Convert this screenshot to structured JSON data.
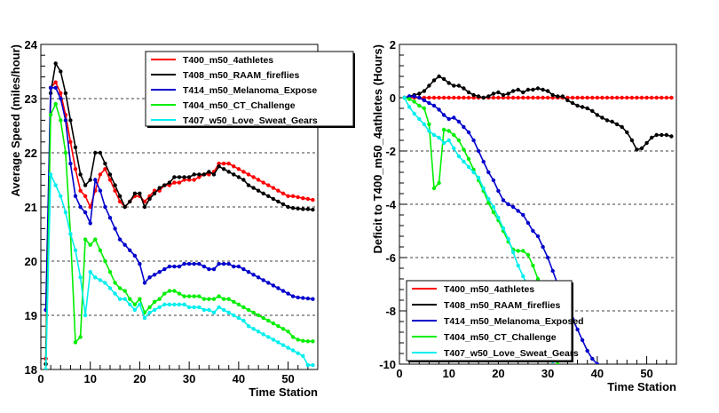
{
  "chart_data": [
    {
      "type": "line",
      "title": "",
      "xlabel": "Time Station",
      "ylabel": "Average Speed (miles/hour)",
      "xlim": [
        0,
        56
      ],
      "ylim": [
        18,
        24
      ],
      "x_ticks": [
        0,
        10,
        20,
        30,
        40,
        50
      ],
      "y_ticks": [
        18,
        19,
        20,
        21,
        22,
        23,
        24
      ],
      "grid": "y-dashed",
      "legend_position": "top-right",
      "series": [
        {
          "name": "T400_m50_4athletes",
          "color": "#ff0000",
          "x": [
            1,
            2,
            3,
            4,
            5,
            6,
            7,
            8,
            9,
            10,
            11,
            12,
            13,
            14,
            15,
            16,
            17,
            18,
            19,
            20,
            21,
            22,
            23,
            24,
            25,
            26,
            27,
            28,
            29,
            30,
            31,
            32,
            33,
            34,
            35,
            36,
            37,
            38,
            39,
            40,
            41,
            42,
            43,
            44,
            45,
            46,
            47,
            48,
            49,
            50,
            51,
            52,
            53,
            54,
            55
          ],
          "values": [
            18.2,
            23.2,
            23.3,
            23.1,
            22.7,
            22.2,
            21.7,
            21.3,
            21.2,
            21.0,
            21.3,
            21.6,
            21.7,
            21.5,
            21.3,
            21.1,
            21.0,
            21.1,
            21.2,
            21.2,
            21.1,
            21.2,
            21.3,
            21.3,
            21.4,
            21.4,
            21.45,
            21.45,
            21.5,
            21.5,
            21.5,
            21.55,
            21.6,
            21.6,
            21.65,
            21.8,
            21.8,
            21.8,
            21.75,
            21.7,
            21.65,
            21.6,
            21.55,
            21.5,
            21.45,
            21.4,
            21.35,
            21.3,
            21.25,
            21.2,
            21.2,
            21.18,
            21.16,
            21.15,
            21.13
          ]
        },
        {
          "name": "T408_m50_RAAM_fireflies",
          "color": "#000000",
          "x": [
            1,
            2,
            3,
            4,
            5,
            6,
            7,
            8,
            9,
            10,
            11,
            12,
            13,
            14,
            15,
            16,
            17,
            18,
            19,
            20,
            21,
            22,
            23,
            24,
            25,
            26,
            27,
            28,
            29,
            30,
            31,
            32,
            33,
            34,
            35,
            36,
            37,
            38,
            39,
            40,
            41,
            42,
            43,
            44,
            45,
            46,
            47,
            48,
            49,
            50,
            51,
            52,
            53,
            54,
            55
          ],
          "values": [
            18.1,
            23.1,
            23.65,
            23.5,
            23.1,
            22.6,
            22.1,
            21.6,
            21.4,
            21.5,
            22.0,
            22.0,
            21.8,
            21.6,
            21.4,
            21.2,
            21.0,
            21.1,
            21.25,
            21.25,
            21.0,
            21.15,
            21.25,
            21.35,
            21.4,
            21.45,
            21.55,
            21.55,
            21.55,
            21.55,
            21.6,
            21.6,
            21.6,
            21.65,
            21.6,
            21.75,
            21.7,
            21.65,
            21.6,
            21.55,
            21.5,
            21.4,
            21.35,
            21.3,
            21.25,
            21.2,
            21.15,
            21.1,
            21.05,
            21.0,
            20.98,
            20.97,
            20.96,
            20.96,
            20.95
          ]
        },
        {
          "name": "T414_m50_Melanoma_Expose",
          "color": "#0000cc",
          "x": [
            1,
            2,
            3,
            4,
            5,
            6,
            7,
            8,
            9,
            10,
            11,
            12,
            13,
            14,
            15,
            16,
            17,
            18,
            19,
            20,
            21,
            22,
            23,
            24,
            25,
            26,
            27,
            28,
            29,
            30,
            31,
            32,
            33,
            34,
            35,
            36,
            37,
            38,
            39,
            40,
            41,
            42,
            43,
            44,
            45,
            46,
            47,
            48,
            49,
            50,
            51,
            52,
            53,
            54,
            55
          ],
          "values": [
            19.1,
            23.2,
            23.2,
            23.0,
            22.6,
            21.8,
            21.2,
            21.0,
            20.9,
            20.7,
            21.5,
            21.3,
            21.0,
            20.8,
            20.6,
            20.4,
            20.3,
            20.2,
            20.1,
            19.95,
            19.6,
            19.7,
            19.75,
            19.8,
            19.85,
            19.9,
            19.9,
            19.9,
            19.95,
            19.95,
            19.95,
            19.95,
            19.9,
            19.85,
            19.85,
            19.95,
            19.95,
            19.95,
            19.9,
            19.9,
            19.85,
            19.8,
            19.75,
            19.7,
            19.65,
            19.6,
            19.55,
            19.5,
            19.45,
            19.4,
            19.35,
            19.33,
            19.32,
            19.31,
            19.3
          ]
        },
        {
          "name": "T404_m50_CT_Challenge",
          "color": "#00ee00",
          "x": [
            1,
            2,
            3,
            4,
            5,
            6,
            7,
            8,
            9,
            10,
            11,
            12,
            13,
            14,
            15,
            16,
            17,
            18,
            19,
            20,
            21,
            22,
            23,
            24,
            25,
            26,
            27,
            28,
            29,
            30,
            31,
            32,
            33,
            34,
            35,
            36,
            37,
            38,
            39,
            40,
            41,
            42,
            43,
            44,
            45,
            46,
            47,
            48,
            49,
            50,
            51,
            52,
            53,
            54,
            55
          ],
          "values": [
            18.0,
            22.7,
            22.9,
            22.6,
            22.0,
            20.5,
            18.5,
            18.6,
            20.4,
            20.3,
            20.4,
            20.2,
            20.0,
            19.8,
            19.6,
            19.5,
            19.45,
            19.3,
            19.2,
            19.3,
            19.05,
            19.15,
            19.25,
            19.3,
            19.4,
            19.45,
            19.45,
            19.4,
            19.35,
            19.35,
            19.35,
            19.35,
            19.3,
            19.3,
            19.3,
            19.35,
            19.3,
            19.3,
            19.25,
            19.2,
            19.15,
            19.1,
            19.05,
            19.0,
            18.95,
            18.9,
            18.85,
            18.8,
            18.75,
            18.7,
            18.6,
            18.55,
            18.53,
            18.52,
            18.52
          ]
        },
        {
          "name": "T407_w50_Love_Sweat_Gears",
          "color": "#00eeee",
          "x": [
            1,
            2,
            3,
            4,
            5,
            6,
            7,
            8,
            9,
            10,
            11,
            12,
            13,
            14,
            15,
            16,
            17,
            18,
            19,
            20,
            21,
            22,
            23,
            24,
            25,
            26,
            27,
            28,
            29,
            30,
            31,
            32,
            33,
            34,
            35,
            36,
            37,
            38,
            39,
            40,
            41,
            42,
            43,
            44,
            45,
            46,
            47,
            48,
            49,
            50,
            51,
            52,
            53,
            54,
            55
          ],
          "values": [
            18.0,
            21.6,
            21.4,
            21.2,
            20.9,
            20.5,
            20.2,
            19.7,
            19.0,
            19.8,
            19.7,
            19.65,
            19.6,
            19.5,
            19.4,
            19.3,
            19.3,
            19.2,
            19.1,
            19.2,
            18.95,
            19.05,
            19.1,
            19.15,
            19.2,
            19.2,
            19.2,
            19.2,
            19.2,
            19.15,
            19.15,
            19.15,
            19.1,
            19.1,
            19.05,
            19.15,
            19.1,
            19.05,
            19.0,
            18.95,
            18.9,
            18.8,
            18.75,
            18.7,
            18.65,
            18.6,
            18.55,
            18.5,
            18.45,
            18.4,
            18.35,
            18.3,
            18.25,
            18.08,
            18.08
          ]
        }
      ]
    },
    {
      "type": "line",
      "title": "",
      "xlabel": "Time Station",
      "ylabel": "Deficit to T400_m50_4athletes (Hours)",
      "xlim": [
        0,
        56
      ],
      "ylim": [
        -10,
        2
      ],
      "x_ticks": [
        0,
        10,
        20,
        30,
        40,
        50
      ],
      "y_ticks": [
        -10,
        -8,
        -6,
        -4,
        -2,
        0,
        2
      ],
      "grid": "y-dashed",
      "legend_position": "bottom-left",
      "series": [
        {
          "name": "T400_m50_4athletes",
          "color": "#ff0000",
          "x": [
            1,
            2,
            3,
            4,
            5,
            6,
            7,
            8,
            9,
            10,
            11,
            12,
            13,
            14,
            15,
            16,
            17,
            18,
            19,
            20,
            21,
            22,
            23,
            24,
            25,
            26,
            27,
            28,
            29,
            30,
            31,
            32,
            33,
            34,
            35,
            36,
            37,
            38,
            39,
            40,
            41,
            42,
            43,
            44,
            45,
            46,
            47,
            48,
            49,
            50,
            51,
            52,
            53,
            54,
            55
          ],
          "values": [
            0,
            0,
            0,
            0,
            0,
            0,
            0,
            0,
            0,
            0,
            0,
            0,
            0,
            0,
            0,
            0,
            0,
            0,
            0,
            0,
            0,
            0,
            0,
            0,
            0,
            0,
            0,
            0,
            0,
            0,
            0,
            0,
            0,
            0,
            0,
            0,
            0,
            0,
            0,
            0,
            0,
            0,
            0,
            0,
            0,
            0,
            0,
            0,
            0,
            0,
            0,
            0,
            0,
            0,
            0
          ]
        },
        {
          "name": "T408_m50_RAAM_fireflies",
          "color": "#000000",
          "x": [
            1,
            2,
            3,
            4,
            5,
            6,
            7,
            8,
            9,
            10,
            11,
            12,
            13,
            14,
            15,
            16,
            17,
            18,
            19,
            20,
            21,
            22,
            23,
            24,
            25,
            26,
            27,
            28,
            29,
            30,
            31,
            32,
            33,
            34,
            35,
            36,
            37,
            38,
            39,
            40,
            41,
            42,
            43,
            44,
            45,
            46,
            47,
            48,
            49,
            50,
            51,
            52,
            53,
            54,
            55
          ],
          "values": [
            0,
            0.05,
            0.1,
            0.15,
            0.25,
            0.45,
            0.65,
            0.8,
            0.7,
            0.55,
            0.45,
            0.45,
            0.35,
            0.2,
            0.1,
            0.05,
            0,
            0.05,
            0.15,
            0.2,
            0.1,
            0.15,
            0.25,
            0.3,
            0.2,
            0.3,
            0.3,
            0.35,
            0.3,
            0.25,
            0.1,
            0.05,
            0.05,
            -0.1,
            -0.2,
            -0.3,
            -0.35,
            -0.4,
            -0.5,
            -0.65,
            -0.75,
            -0.85,
            -0.9,
            -1.0,
            -1.1,
            -1.3,
            -1.6,
            -1.95,
            -1.9,
            -1.7,
            -1.5,
            -1.4,
            -1.4,
            -1.4,
            -1.45
          ]
        },
        {
          "name": "T414_m50_Melanoma_Exposed",
          "color": "#0000cc",
          "x": [
            1,
            2,
            3,
            4,
            5,
            6,
            7,
            8,
            9,
            10,
            11,
            12,
            13,
            14,
            15,
            16,
            17,
            18,
            19,
            20,
            21,
            22,
            23,
            24,
            25,
            26,
            27,
            28,
            29,
            30,
            31,
            32,
            33,
            34,
            35,
            36,
            37,
            38,
            39,
            40
          ],
          "values": [
            0,
            0.05,
            0.05,
            0,
            -0.1,
            -0.2,
            -0.3,
            -0.45,
            -0.65,
            -0.8,
            -0.75,
            -0.9,
            -1.1,
            -1.3,
            -1.6,
            -2.0,
            -2.4,
            -2.8,
            -3.1,
            -3.5,
            -3.85,
            -4.0,
            -4.1,
            -4.25,
            -4.4,
            -4.7,
            -5.0,
            -5.2,
            -5.6,
            -6.0,
            -6.5,
            -7.0,
            -7.5,
            -7.9,
            -8.3,
            -8.7,
            -9.1,
            -9.5,
            -9.8,
            -10.0
          ]
        },
        {
          "name": "T404_m50_CT_Challenge",
          "color": "#00ee00",
          "x": [
            1,
            2,
            3,
            4,
            5,
            6,
            7,
            8,
            9,
            10,
            11,
            12,
            13,
            14,
            15,
            16,
            17,
            18,
            19,
            20,
            21,
            22,
            23,
            24,
            25,
            26,
            27,
            28,
            29,
            30,
            31,
            32
          ],
          "values": [
            0,
            -0.05,
            -0.15,
            -0.3,
            -0.4,
            -1.0,
            -3.4,
            -3.2,
            -1.2,
            -1.25,
            -1.4,
            -1.6,
            -1.95,
            -2.3,
            -2.7,
            -3.1,
            -3.5,
            -3.95,
            -4.3,
            -4.6,
            -5.0,
            -5.4,
            -5.7,
            -5.75,
            -5.75,
            -5.9,
            -6.3,
            -6.8,
            -7.5,
            -8.3,
            -9.2,
            -10.0
          ]
        },
        {
          "name": "T407_w50_Love_Sweat_Gears",
          "color": "#00eeee",
          "x": [
            1,
            2,
            3,
            4,
            5,
            6,
            7,
            8,
            9,
            10,
            11,
            12,
            13,
            14,
            15,
            16,
            17,
            18,
            19,
            20,
            21,
            22,
            23,
            24,
            25,
            26,
            27,
            28,
            29,
            30,
            31
          ],
          "values": [
            0,
            -0.35,
            -0.6,
            -0.8,
            -1.0,
            -1.25,
            -1.4,
            -1.5,
            -1.7,
            -1.6,
            -1.9,
            -2.2,
            -2.4,
            -2.6,
            -2.8,
            -3.0,
            -3.4,
            -3.8,
            -4.1,
            -4.5,
            -4.9,
            -5.3,
            -5.8,
            -6.3,
            -6.7,
            -7.1,
            -7.5,
            -8.0,
            -8.5,
            -9.2,
            -9.9
          ]
        }
      ]
    }
  ]
}
